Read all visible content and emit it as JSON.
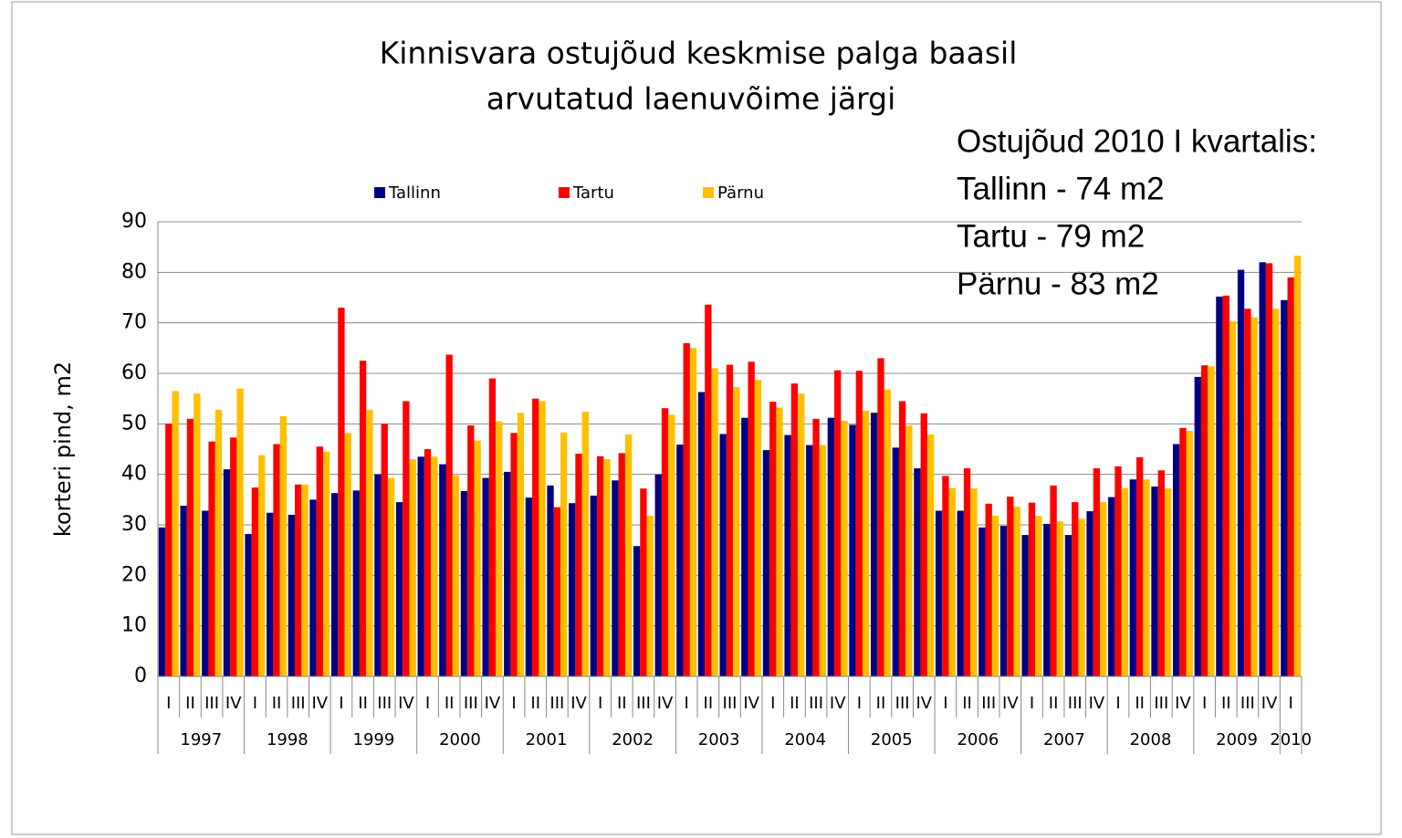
{
  "chart_data": {
    "type": "bar",
    "title": [
      "Kinnisvara ostujõud keskmise palga baasil",
      "arvutatud laenuvõime järgi"
    ],
    "y_label": "korteri pind, m2",
    "annotation": [
      "Ostujõud 2010 I kvartalis:",
      "Tallinn - 74 m2",
      "Tartu - 79 m2",
      "Pärnu - 83 m2"
    ],
    "categories": [
      "I",
      "II",
      "III",
      "IV",
      "I",
      "II",
      "III",
      "IV",
      "I",
      "II",
      "III",
      "IV",
      "I",
      "II",
      "III",
      "IV",
      "I",
      "II",
      "III",
      "IV",
      "I",
      "II",
      "III",
      "IV",
      "I",
      "II",
      "III",
      "IV",
      "I",
      "II",
      "III",
      "IV",
      "I",
      "II",
      "III",
      "IV",
      "I",
      "II",
      "III",
      "IV",
      "I",
      "II",
      "III",
      "IV",
      "I",
      "II",
      "III",
      "IV",
      "I",
      "II",
      "III",
      "IV",
      "I"
    ],
    "years": [
      "1997",
      "1998",
      "1999",
      "2000",
      "2001",
      "2002",
      "2003",
      "2004",
      "2005",
      "2006",
      "2007",
      "2008",
      "2009",
      "2010"
    ],
    "series": [
      {
        "name": "Tallinn",
        "color": "#000080",
        "values": [
          29.5,
          33.8,
          32.8,
          41,
          28.2,
          32.4,
          32,
          35,
          36.3,
          36.8,
          40,
          34.5,
          43.5,
          42,
          36.7,
          39.3,
          40.5,
          35.4,
          37.8,
          34.3,
          35.8,
          38.8,
          25.8,
          40,
          45.9,
          56.3,
          48,
          51.2,
          44.8,
          47.8,
          45.8,
          51.2,
          49.8,
          52.2,
          45.3,
          41.2,
          32.8,
          32.8,
          29.5,
          29.8,
          28,
          30.2,
          28,
          32.7,
          35.5,
          39,
          37.6,
          46,
          59.3,
          75.2,
          80.5,
          82,
          74.5
        ]
      },
      {
        "name": "Tartu",
        "color": "#ff0000",
        "values": [
          50,
          51,
          46.5,
          47.3,
          37.4,
          46,
          38,
          45.5,
          73,
          62.5,
          50,
          54.5,
          45,
          63.7,
          49.7,
          59,
          48.2,
          55,
          33.5,
          44.1,
          43.6,
          44.2,
          37.2,
          53.1,
          66,
          73.6,
          61.7,
          62.3,
          54.4,
          58,
          51,
          60.6,
          60.5,
          63,
          54.5,
          52.1,
          39.7,
          41.2,
          34.2,
          35.6,
          34.4,
          37.8,
          34.5,
          41.2,
          41.6,
          43.4,
          40.8,
          49.2,
          61.6,
          75.4,
          72.8,
          81.8,
          79
        ]
      },
      {
        "name": "Pärnu",
        "color": "#ffc000",
        "values": [
          56.5,
          56,
          52.8,
          57,
          43.8,
          51.5,
          38,
          44.5,
          48.2,
          52.8,
          39.3,
          43,
          43.5,
          39.8,
          46.7,
          50.5,
          52.2,
          54.5,
          48.3,
          52.4,
          43,
          47.9,
          31.8,
          51.8,
          65,
          61,
          57.3,
          58.7,
          53.2,
          56,
          45.8,
          50.6,
          52.6,
          56.8,
          49.7,
          47.9,
          37.3,
          37.2,
          31.8,
          33.6,
          31.8,
          30.7,
          31.2,
          34.5,
          37.3,
          39,
          37.2,
          48.6,
          61.4,
          70.3,
          71.1,
          72.8,
          83.3
        ]
      }
    ],
    "ylim": [
      0,
      90
    ],
    "yticks": [
      0,
      10,
      20,
      30,
      40,
      50,
      60,
      70,
      80,
      90
    ],
    "grid": true,
    "legend": "top"
  }
}
